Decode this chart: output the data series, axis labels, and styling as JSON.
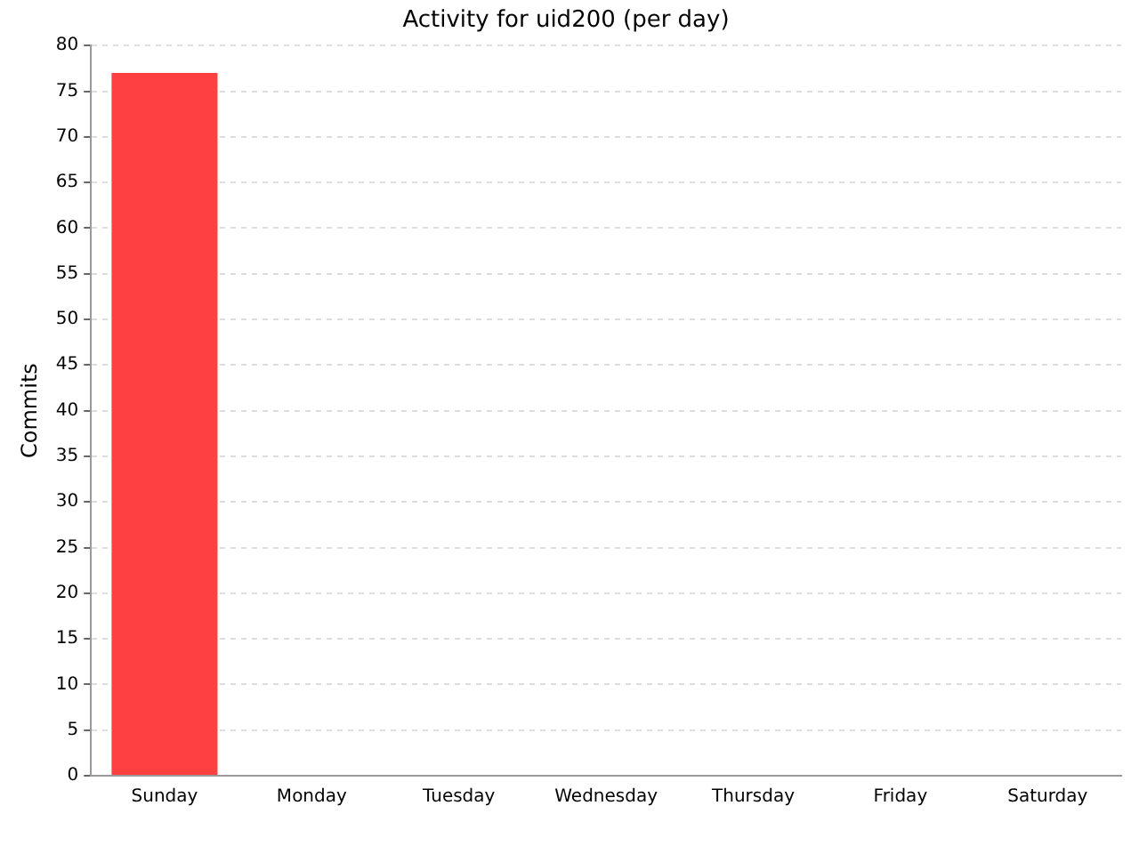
{
  "chart_data": {
    "type": "bar",
    "title": "Activity for uid200 (per day)",
    "ylabel": "Commits",
    "categories": [
      "Sunday",
      "Monday",
      "Tuesday",
      "Wednesday",
      "Thursday",
      "Friday",
      "Saturday"
    ],
    "values": [
      77,
      0,
      0,
      0,
      0,
      0,
      0
    ],
    "color": "#ff4040",
    "ylim": [
      0,
      80
    ],
    "yticks": [
      0,
      5,
      10,
      15,
      20,
      25,
      30,
      35,
      40,
      45,
      50,
      55,
      60,
      65,
      70,
      75,
      80
    ],
    "grid": "y",
    "legend": false
  }
}
